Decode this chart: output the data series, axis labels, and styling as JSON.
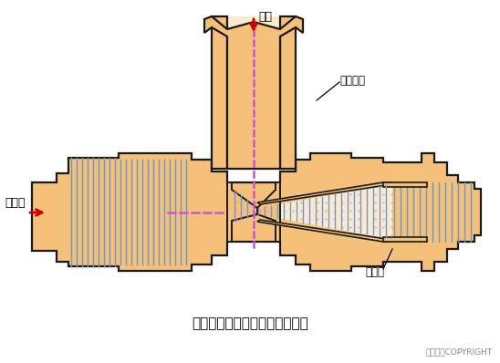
{
  "bg_color": "#ffffff",
  "fill_color": "#F5C07A",
  "fill_light": "#FAEBD0",
  "outline_color": "#1a1a1a",
  "blue_line_color": "#6699CC",
  "pink_dot_color": "#EE88DD",
  "dashed_color": "#CC55CC",
  "arrow_color": "#CC0000",
  "title": "射流式水力冲击式空气扩散装置",
  "label_air": "空气",
  "label_pipe": "空气竖管",
  "label_diffuser": "扩散器",
  "label_mix": "混合液",
  "copyright": "东方仿真COPYRIGHT"
}
